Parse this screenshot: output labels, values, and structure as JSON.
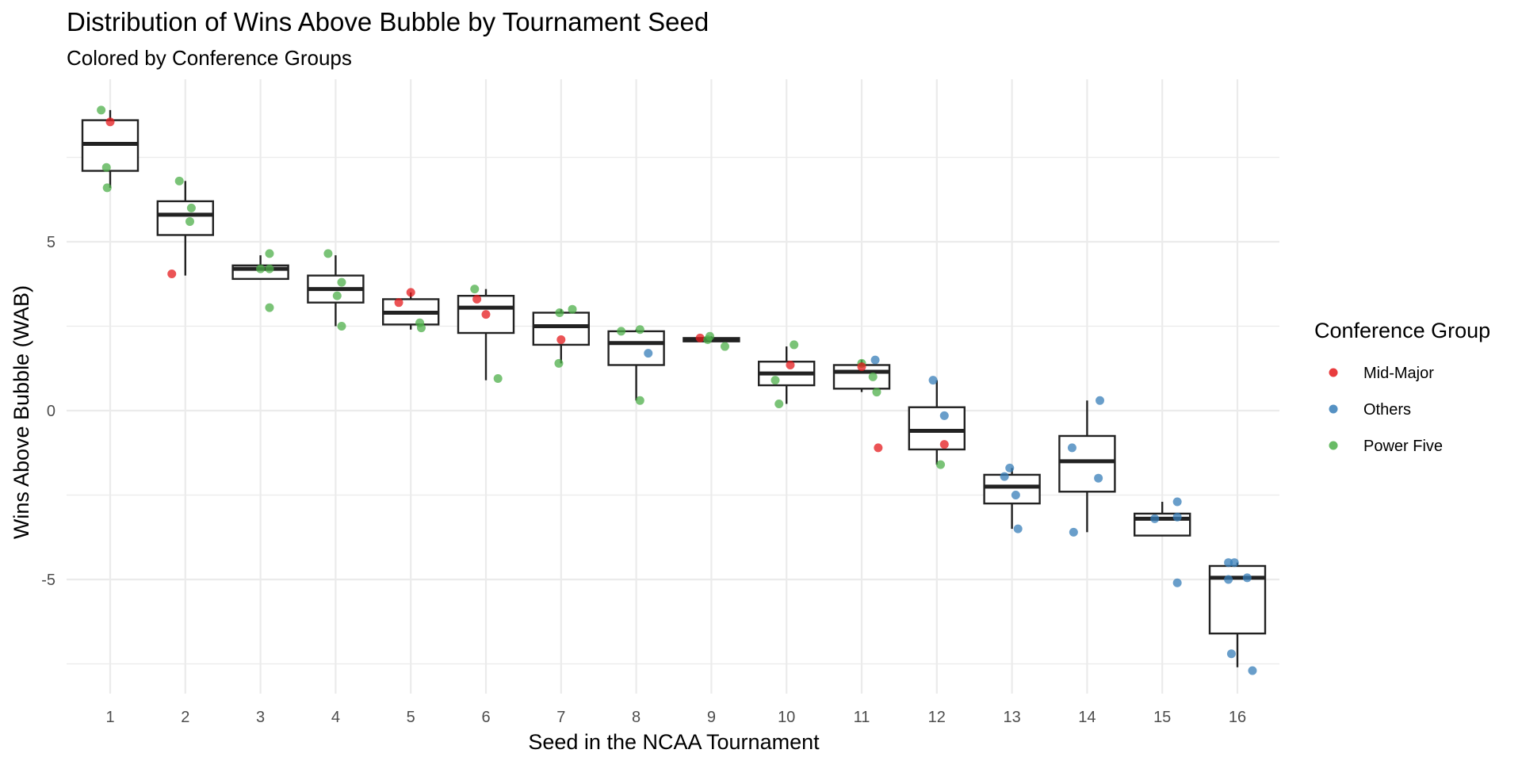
{
  "chart_data": {
    "type": "box",
    "title": "Distribution of Wins Above Bubble by Tournament Seed",
    "subtitle": "Colored by Conference Groups",
    "xlabel": "Seed in the NCAA Tournament",
    "ylabel": "Wins Above Bubble (WAB)",
    "categories": [
      "1",
      "2",
      "3",
      "4",
      "5",
      "6",
      "7",
      "8",
      "9",
      "10",
      "11",
      "12",
      "13",
      "14",
      "15",
      "16"
    ],
    "yticks": [
      -5,
      0,
      5
    ],
    "ylim": [
      -8.3,
      9.5
    ],
    "grid": true,
    "legend": {
      "title": "Conference Group",
      "position": "right",
      "entries": [
        {
          "name": "Mid-Major",
          "color": "#e41a1c"
        },
        {
          "name": "Others",
          "color": "#377eb8"
        },
        {
          "name": "Power Five",
          "color": "#4daf4a"
        }
      ]
    },
    "boxes": [
      {
        "seed": 1,
        "lower_whisker": 6.6,
        "q1": 7.1,
        "median": 7.9,
        "q3": 8.6,
        "upper_whisker": 8.9
      },
      {
        "seed": 2,
        "lower_whisker": 4.0,
        "q1": 5.2,
        "median": 5.8,
        "q3": 6.2,
        "upper_whisker": 6.8
      },
      {
        "seed": 3,
        "lower_whisker": 3.9,
        "q1": 3.9,
        "median": 4.2,
        "q3": 4.3,
        "upper_whisker": 4.6
      },
      {
        "seed": 4,
        "lower_whisker": 2.5,
        "q1": 3.2,
        "median": 3.6,
        "q3": 4.0,
        "upper_whisker": 4.6
      },
      {
        "seed": 5,
        "lower_whisker": 2.4,
        "q1": 2.55,
        "median": 2.9,
        "q3": 3.3,
        "upper_whisker": 3.5
      },
      {
        "seed": 6,
        "lower_whisker": 0.9,
        "q1": 2.3,
        "median": 3.05,
        "q3": 3.4,
        "upper_whisker": 3.6
      },
      {
        "seed": 7,
        "lower_whisker": 1.4,
        "q1": 1.95,
        "median": 2.5,
        "q3": 2.9,
        "upper_whisker": 3.0
      },
      {
        "seed": 8,
        "lower_whisker": 0.3,
        "q1": 1.35,
        "median": 2.0,
        "q3": 2.35,
        "upper_whisker": 2.4
      },
      {
        "seed": 9,
        "lower_whisker": 2.05,
        "q1": 2.05,
        "median": 2.1,
        "q3": 2.15,
        "upper_whisker": 2.2
      },
      {
        "seed": 10,
        "lower_whisker": 0.2,
        "q1": 0.75,
        "median": 1.1,
        "q3": 1.45,
        "upper_whisker": 1.9
      },
      {
        "seed": 11,
        "lower_whisker": 0.55,
        "q1": 0.65,
        "median": 1.15,
        "q3": 1.35,
        "upper_whisker": 1.5
      },
      {
        "seed": 12,
        "lower_whisker": -1.6,
        "q1": -1.15,
        "median": -0.6,
        "q3": 0.1,
        "upper_whisker": 0.9
      },
      {
        "seed": 13,
        "lower_whisker": -3.5,
        "q1": -2.75,
        "median": -2.25,
        "q3": -1.9,
        "upper_whisker": -1.7
      },
      {
        "seed": 14,
        "lower_whisker": -3.6,
        "q1": -2.4,
        "median": -1.5,
        "q3": -0.75,
        "upper_whisker": 0.3
      },
      {
        "seed": 15,
        "lower_whisker": -3.7,
        "q1": -3.7,
        "median": -3.2,
        "q3": -3.05,
        "upper_whisker": -2.7
      },
      {
        "seed": 16,
        "lower_whisker": -7.6,
        "q1": -6.6,
        "median": -4.95,
        "q3": -4.6,
        "upper_whisker": -4.5
      }
    ],
    "points": [
      {
        "seed": 1,
        "group": "Power Five",
        "x": 0.88,
        "y": 8.9
      },
      {
        "seed": 1,
        "group": "Mid-Major",
        "x": 1.0,
        "y": 8.55
      },
      {
        "seed": 1,
        "group": "Power Five",
        "x": 0.95,
        "y": 7.2
      },
      {
        "seed": 1,
        "group": "Power Five",
        "x": 0.96,
        "y": 6.6
      },
      {
        "seed": 2,
        "group": "Power Five",
        "x": 1.92,
        "y": 6.8
      },
      {
        "seed": 2,
        "group": "Power Five",
        "x": 2.08,
        "y": 6.0
      },
      {
        "seed": 2,
        "group": "Power Five",
        "x": 2.06,
        "y": 5.6
      },
      {
        "seed": 2,
        "group": "Mid-Major",
        "x": 1.82,
        "y": 4.05
      },
      {
        "seed": 3,
        "group": "Power Five",
        "x": 3.12,
        "y": 4.65
      },
      {
        "seed": 3,
        "group": "Power Five",
        "x": 3.0,
        "y": 4.2
      },
      {
        "seed": 3,
        "group": "Power Five",
        "x": 3.12,
        "y": 4.2
      },
      {
        "seed": 3,
        "group": "Power Five",
        "x": 3.12,
        "y": 3.05
      },
      {
        "seed": 4,
        "group": "Power Five",
        "x": 3.9,
        "y": 4.65
      },
      {
        "seed": 4,
        "group": "Power Five",
        "x": 4.08,
        "y": 3.8
      },
      {
        "seed": 4,
        "group": "Power Five",
        "x": 4.02,
        "y": 3.4
      },
      {
        "seed": 4,
        "group": "Power Five",
        "x": 4.08,
        "y": 2.5
      },
      {
        "seed": 5,
        "group": "Mid-Major",
        "x": 5.0,
        "y": 3.5
      },
      {
        "seed": 5,
        "group": "Mid-Major",
        "x": 4.84,
        "y": 3.2
      },
      {
        "seed": 5,
        "group": "Power Five",
        "x": 5.12,
        "y": 2.6
      },
      {
        "seed": 5,
        "group": "Power Five",
        "x": 5.14,
        "y": 2.45
      },
      {
        "seed": 6,
        "group": "Power Five",
        "x": 5.85,
        "y": 3.6
      },
      {
        "seed": 6,
        "group": "Mid-Major",
        "x": 5.88,
        "y": 3.3
      },
      {
        "seed": 6,
        "group": "Mid-Major",
        "x": 6.0,
        "y": 2.85
      },
      {
        "seed": 6,
        "group": "Power Five",
        "x": 6.16,
        "y": 0.95
      },
      {
        "seed": 7,
        "group": "Power Five",
        "x": 7.15,
        "y": 3.0
      },
      {
        "seed": 7,
        "group": "Power Five",
        "x": 6.98,
        "y": 2.9
      },
      {
        "seed": 7,
        "group": "Mid-Major",
        "x": 7.0,
        "y": 2.1
      },
      {
        "seed": 7,
        "group": "Power Five",
        "x": 6.97,
        "y": 1.4
      },
      {
        "seed": 8,
        "group": "Power Five",
        "x": 8.05,
        "y": 2.4
      },
      {
        "seed": 8,
        "group": "Power Five",
        "x": 7.8,
        "y": 2.35
      },
      {
        "seed": 8,
        "group": "Others",
        "x": 8.16,
        "y": 1.7
      },
      {
        "seed": 8,
        "group": "Power Five",
        "x": 8.05,
        "y": 0.3
      },
      {
        "seed": 9,
        "group": "Power Five",
        "x": 8.98,
        "y": 2.2
      },
      {
        "seed": 9,
        "group": "Mid-Major",
        "x": 8.85,
        "y": 2.15
      },
      {
        "seed": 9,
        "group": "Power Five",
        "x": 8.95,
        "y": 2.1
      },
      {
        "seed": 9,
        "group": "Power Five",
        "x": 9.18,
        "y": 1.9
      },
      {
        "seed": 10,
        "group": "Power Five",
        "x": 10.1,
        "y": 1.95
      },
      {
        "seed": 10,
        "group": "Mid-Major",
        "x": 10.05,
        "y": 1.35
      },
      {
        "seed": 10,
        "group": "Power Five",
        "x": 9.85,
        "y": 0.9
      },
      {
        "seed": 10,
        "group": "Power Five",
        "x": 9.9,
        "y": 0.2
      },
      {
        "seed": 11,
        "group": "Others",
        "x": 11.18,
        "y": 1.5
      },
      {
        "seed": 11,
        "group": "Power Five",
        "x": 11.0,
        "y": 1.4
      },
      {
        "seed": 11,
        "group": "Mid-Major",
        "x": 11.0,
        "y": 1.3
      },
      {
        "seed": 11,
        "group": "Power Five",
        "x": 11.15,
        "y": 1.0
      },
      {
        "seed": 11,
        "group": "Power Five",
        "x": 11.2,
        "y": 0.55
      },
      {
        "seed": 11,
        "group": "Mid-Major",
        "x": 11.22,
        "y": -1.1
      },
      {
        "seed": 12,
        "group": "Others",
        "x": 11.95,
        "y": 0.9
      },
      {
        "seed": 12,
        "group": "Others",
        "x": 12.1,
        "y": -0.15
      },
      {
        "seed": 12,
        "group": "Mid-Major",
        "x": 12.1,
        "y": -1.0
      },
      {
        "seed": 12,
        "group": "Power Five",
        "x": 12.05,
        "y": -1.6
      },
      {
        "seed": 13,
        "group": "Others",
        "x": 12.97,
        "y": -1.7
      },
      {
        "seed": 13,
        "group": "Others",
        "x": 12.9,
        "y": -1.95
      },
      {
        "seed": 13,
        "group": "Others",
        "x": 13.05,
        "y": -2.5
      },
      {
        "seed": 13,
        "group": "Others",
        "x": 13.08,
        "y": -3.5
      },
      {
        "seed": 14,
        "group": "Others",
        "x": 14.17,
        "y": 0.3
      },
      {
        "seed": 14,
        "group": "Others",
        "x": 13.8,
        "y": -1.1
      },
      {
        "seed": 14,
        "group": "Others",
        "x": 14.15,
        "y": -2.0
      },
      {
        "seed": 14,
        "group": "Others",
        "x": 13.82,
        "y": -3.6
      },
      {
        "seed": 15,
        "group": "Others",
        "x": 15.2,
        "y": -2.7
      },
      {
        "seed": 15,
        "group": "Others",
        "x": 15.2,
        "y": -3.15
      },
      {
        "seed": 15,
        "group": "Others",
        "x": 14.9,
        "y": -3.2
      },
      {
        "seed": 15,
        "group": "Others",
        "x": 15.2,
        "y": -5.1
      },
      {
        "seed": 16,
        "group": "Others",
        "x": 15.88,
        "y": -4.5
      },
      {
        "seed": 16,
        "group": "Others",
        "x": 15.96,
        "y": -4.5
      },
      {
        "seed": 16,
        "group": "Others",
        "x": 15.88,
        "y": -5.0
      },
      {
        "seed": 16,
        "group": "Others",
        "x": 16.13,
        "y": -4.95
      },
      {
        "seed": 16,
        "group": "Others",
        "x": 15.92,
        "y": -7.2
      },
      {
        "seed": 16,
        "group": "Others",
        "x": 16.2,
        "y": -7.7
      }
    ]
  }
}
